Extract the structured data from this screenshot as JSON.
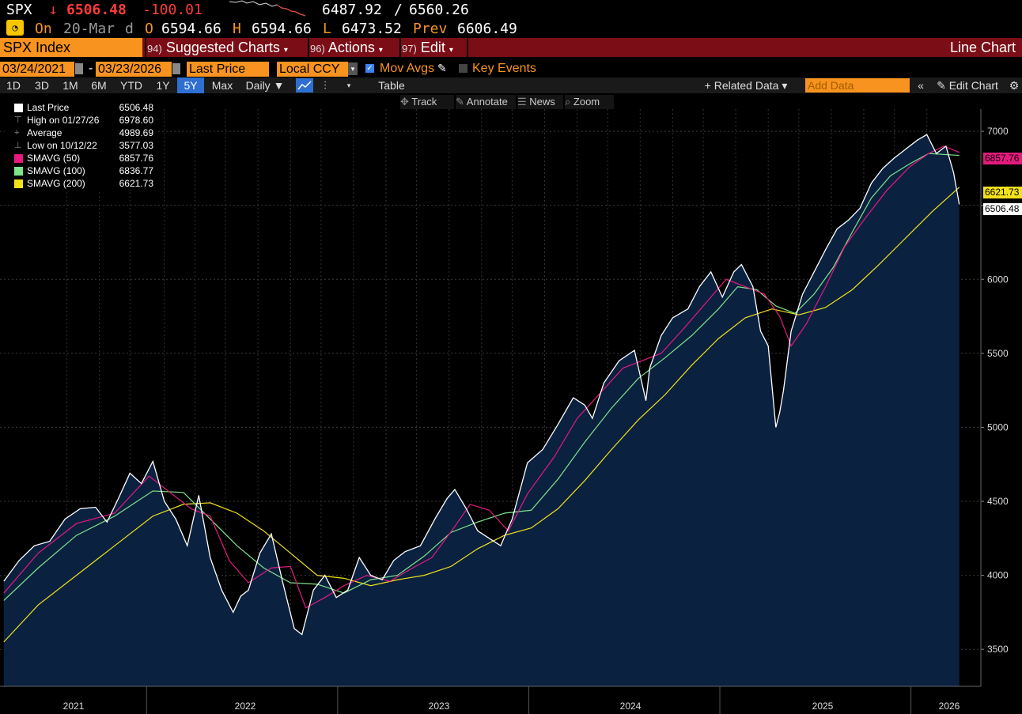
{
  "header": {
    "ticker": "SPX",
    "arrow": "↓",
    "last": "6506.48",
    "change": "-100.01",
    "range_low": "6487.92",
    "range_sep": "/",
    "range_high": "6560.26",
    "on_label": "On",
    "date": "20-Mar",
    "d": "d",
    "o_label": "O",
    "open": "6594.66",
    "h_label": "H",
    "high": "6594.66",
    "l_label": "L",
    "low": "6473.52",
    "prev_label": "Prev",
    "prev": "6606.49"
  },
  "toolbar": {
    "security": "SPX Index",
    "suggested_num": "94)",
    "suggested": "Suggested Charts",
    "actions_num": "96)",
    "actions": "Actions",
    "edit_num": "97)",
    "edit": "Edit",
    "chart_type": "Line Chart"
  },
  "controls": {
    "start_date": "03/24/2021",
    "dash": "-",
    "end_date": "03/23/2026",
    "field": "Last Price",
    "currency": "Local CCY",
    "mov_avgs": "Mov Avgs",
    "key_events": "Key Events"
  },
  "periods": [
    "1D",
    "3D",
    "1M",
    "6M",
    "YTD",
    "1Y",
    "5Y",
    "Max"
  ],
  "selected_period": "5Y",
  "frequency": "Daily",
  "table_label": "Table",
  "related_data": "+ Related Data",
  "add_data_placeholder": "Add Data",
  "edit_chart": "Edit Chart",
  "chart_tools": [
    "Track",
    "Annotate",
    "News",
    "Zoom"
  ],
  "legend": [
    {
      "label": "Last Price",
      "value": "6506.48",
      "color": "#ffffff"
    },
    {
      "label": "High on 01/27/26",
      "value": "6978.60",
      "color": ""
    },
    {
      "label": "Average",
      "value": "4989.69",
      "color": ""
    },
    {
      "label": "Low on 10/12/22",
      "value": "3577.03",
      "color": ""
    },
    {
      "label": "SMAVG (50)",
      "value": "6857.76",
      "color": "#e5197e"
    },
    {
      "label": "SMAVG (100)",
      "value": "6836.77",
      "color": "#7ee58a"
    },
    {
      "label": "SMAVG (200)",
      "value": "6621.73",
      "color": "#f2e21b"
    }
  ],
  "price_tags": [
    {
      "value": "6857.76",
      "color": "#e5197e"
    },
    {
      "value": "6621.73",
      "color": "#f2e21b"
    },
    {
      "value": "6506.48",
      "color": "#ffffff"
    }
  ],
  "chart_data": {
    "type": "line",
    "x_axis": {
      "labels": [
        "2021",
        "2022",
        "2023",
        "2024",
        "2025",
        "2026"
      ]
    },
    "y_axis": {
      "ticks": [
        3500,
        4000,
        4500,
        5000,
        5500,
        6000,
        6500,
        7000
      ],
      "ylim": [
        3250,
        7150
      ]
    },
    "series": [
      {
        "name": "Last Price",
        "color": "#ffffff",
        "x": [
          2021.22,
          2021.3,
          2021.38,
          2021.46,
          2021.54,
          2021.62,
          2021.7,
          2021.76,
          2021.82,
          2021.88,
          2021.94,
          2022.0,
          2022.06,
          2022.12,
          2022.18,
          2022.24,
          2022.3,
          2022.36,
          2022.42,
          2022.46,
          2022.5,
          2022.56,
          2022.62,
          2022.68,
          2022.74,
          2022.78,
          2022.84,
          2022.9,
          2022.96,
          2023.02,
          2023.08,
          2023.14,
          2023.2,
          2023.26,
          2023.32,
          2023.4,
          2023.48,
          2023.54,
          2023.58,
          2023.64,
          2023.7,
          2023.76,
          2023.82,
          2023.88,
          2023.96,
          2024.04,
          2024.12,
          2024.2,
          2024.26,
          2024.3,
          2024.36,
          2024.44,
          2024.52,
          2024.58,
          2024.6,
          2024.66,
          2024.72,
          2024.8,
          2024.86,
          2024.92,
          2024.98,
          2025.04,
          2025.08,
          2025.14,
          2025.18,
          2025.22,
          2025.26,
          2025.28,
          2025.3,
          2025.34,
          2025.4,
          2025.46,
          2025.52,
          2025.58,
          2025.64,
          2025.7,
          2025.76,
          2025.82,
          2025.88,
          2025.94,
          2026.0,
          2026.05,
          2026.1,
          2026.15,
          2026.19,
          2026.22
        ],
        "values": [
          3960,
          4100,
          4200,
          4230,
          4380,
          4450,
          4460,
          4360,
          4520,
          4690,
          4620,
          4770,
          4500,
          4380,
          4200,
          4540,
          4120,
          3900,
          3750,
          3860,
          3900,
          4150,
          4280,
          3950,
          3640,
          3600,
          3900,
          4000,
          3850,
          3900,
          4120,
          4000,
          3970,
          4100,
          4160,
          4200,
          4390,
          4520,
          4580,
          4450,
          4300,
          4250,
          4200,
          4380,
          4760,
          4850,
          5020,
          5200,
          5150,
          5060,
          5300,
          5450,
          5520,
          5180,
          5400,
          5620,
          5740,
          5800,
          5950,
          6050,
          5880,
          6050,
          6100,
          5950,
          5650,
          5550,
          5000,
          5100,
          5250,
          5650,
          5900,
          6050,
          6200,
          6340,
          6400,
          6480,
          6650,
          6750,
          6820,
          6880,
          6940,
          6978,
          6850,
          6900,
          6720,
          6506
        ]
      },
      {
        "name": "SMAVG (50)",
        "color": "#e5197e",
        "x": [
          2021.22,
          2021.4,
          2021.6,
          2021.8,
          2021.98,
          2022.1,
          2022.2,
          2022.3,
          2022.4,
          2022.5,
          2022.62,
          2022.72,
          2022.8,
          2022.9,
          2023.0,
          2023.12,
          2023.24,
          2023.36,
          2023.46,
          2023.58,
          2023.66,
          2023.76,
          2023.86,
          2023.96,
          2024.1,
          2024.22,
          2024.34,
          2024.46,
          2024.56,
          2024.66,
          2024.78,
          2024.9,
          2025.0,
          2025.1,
          2025.2,
          2025.28,
          2025.34,
          2025.42,
          2025.52,
          2025.62,
          2025.72,
          2025.84,
          2025.96,
          2026.06,
          2026.14,
          2026.22
        ],
        "values": [
          3880,
          4150,
          4350,
          4420,
          4670,
          4550,
          4450,
          4400,
          4100,
          3950,
          4050,
          4060,
          3780,
          3850,
          3930,
          4000,
          3960,
          4050,
          4120,
          4330,
          4480,
          4440,
          4300,
          4550,
          4800,
          5060,
          5230,
          5400,
          5450,
          5500,
          5670,
          5850,
          6000,
          5950,
          5900,
          5750,
          5550,
          5700,
          5950,
          6220,
          6400,
          6600,
          6760,
          6850,
          6900,
          6858
        ]
      },
      {
        "name": "SMAVG (100)",
        "color": "#7ee58a",
        "x": [
          2021.22,
          2021.4,
          2021.6,
          2021.8,
          2022.0,
          2022.16,
          2022.3,
          2022.44,
          2022.58,
          2022.72,
          2022.86,
          2023.0,
          2023.14,
          2023.28,
          2023.42,
          2023.56,
          2023.7,
          2023.84,
          2023.98,
          2024.12,
          2024.26,
          2024.4,
          2024.54,
          2024.68,
          2024.82,
          2024.96,
          2025.06,
          2025.16,
          2025.26,
          2025.36,
          2025.46,
          2025.56,
          2025.66,
          2025.76,
          2025.86,
          2025.96,
          2026.06,
          2026.22
        ],
        "values": [
          3830,
          4050,
          4270,
          4400,
          4570,
          4560,
          4380,
          4200,
          4050,
          3950,
          3940,
          3880,
          3970,
          4000,
          4130,
          4290,
          4360,
          4420,
          4440,
          4650,
          4900,
          5130,
          5330,
          5470,
          5620,
          5800,
          5950,
          5930,
          5820,
          5770,
          5900,
          6080,
          6320,
          6550,
          6700,
          6780,
          6850,
          6837
        ]
      },
      {
        "name": "SMAVG (200)",
        "color": "#f2e21b",
        "x": [
          2021.22,
          2021.4,
          2021.6,
          2021.8,
          2022.0,
          2022.16,
          2022.3,
          2022.44,
          2022.58,
          2022.72,
          2022.86,
          2023.0,
          2023.14,
          2023.28,
          2023.42,
          2023.56,
          2023.7,
          2023.84,
          2023.98,
          2024.12,
          2024.26,
          2024.4,
          2024.54,
          2024.68,
          2024.82,
          2024.96,
          2025.1,
          2025.24,
          2025.38,
          2025.52,
          2025.66,
          2025.8,
          2025.94,
          2026.08,
          2026.22
        ],
        "values": [
          3550,
          3800,
          4000,
          4200,
          4400,
          4480,
          4490,
          4420,
          4300,
          4150,
          4000,
          3980,
          3930,
          3970,
          4000,
          4060,
          4180,
          4270,
          4320,
          4450,
          4640,
          4850,
          5050,
          5220,
          5420,
          5600,
          5740,
          5800,
          5760,
          5810,
          5930,
          6100,
          6280,
          6460,
          6622
        ]
      }
    ]
  }
}
